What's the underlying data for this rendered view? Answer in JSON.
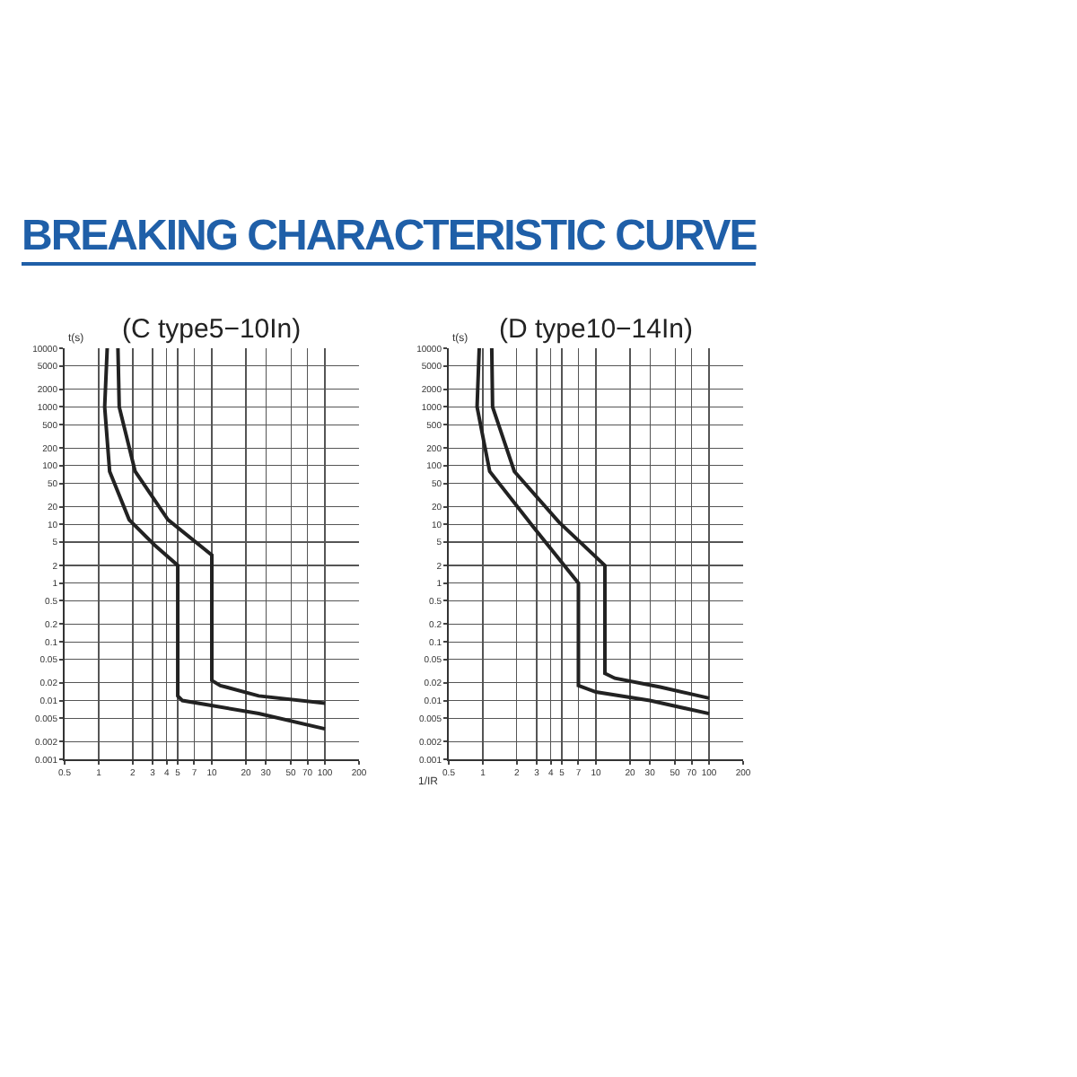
{
  "chart_data": [
    {
      "type": "line",
      "title": "BREAKING CHARACTERISTIC CURVE",
      "subtitle": "(C type5−10In)",
      "ylabel": "t(s)",
      "log": "xy",
      "grid": true,
      "marker": "none",
      "line_style": "solid",
      "xlim": [
        0.5,
        200
      ],
      "ylim": [
        0.001,
        10000
      ],
      "xticks": [
        0.5,
        1,
        2,
        3,
        4,
        5,
        7,
        10,
        20,
        30,
        50,
        70,
        100,
        200
      ],
      "yticks": [
        0.001,
        0.002,
        0.005,
        0.01,
        0.02,
        0.05,
        0.1,
        0.2,
        0.5,
        1,
        2,
        5,
        10,
        20,
        50,
        100,
        200,
        500,
        1000,
        2000,
        5000,
        10000
      ],
      "series": [
        {
          "color": "#222222",
          "x": [
            1.19,
            1.13,
            1.25,
            1.86,
            3.1,
            5,
            5,
            5.5,
            26,
            100
          ],
          "values": [
            10000,
            1000,
            80,
            12,
            4.5,
            2,
            0.012,
            0.01,
            0.006,
            0.0033
          ]
        },
        {
          "color": "#222222",
          "x": [
            1.48,
            1.52,
            2.1,
            4.1,
            10,
            10,
            11.9,
            26,
            100
          ],
          "values": [
            10000,
            1000,
            80,
            12,
            3,
            0.022,
            0.018,
            0.012,
            0.009
          ]
        }
      ]
    },
    {
      "type": "line",
      "subtitle": "(D type10−14In)",
      "ylabel": "t(s)",
      "xlabel": "1/IR",
      "log": "xy",
      "grid": true,
      "marker": "none",
      "line_style": "solid",
      "xlim": [
        0.5,
        200
      ],
      "ylim": [
        0.001,
        10000
      ],
      "xticks": [
        0.5,
        1,
        2,
        3,
        4,
        5,
        7,
        10,
        20,
        30,
        50,
        70,
        100,
        200
      ],
      "yticks": [
        0.001,
        0.002,
        0.005,
        0.01,
        0.02,
        0.05,
        0.1,
        0.2,
        0.5,
        1,
        2,
        5,
        10,
        20,
        50,
        100,
        200,
        500,
        1000,
        2000,
        5000,
        10000
      ],
      "series": [
        {
          "color": "#222222",
          "x": [
            0.93,
            0.89,
            1.15,
            2.8,
            7,
            7,
            10,
            30,
            100
          ],
          "values": [
            10000,
            1000,
            80,
            9,
            1,
            0.018,
            0.014,
            0.01,
            0.006
          ]
        },
        {
          "color": "#222222",
          "x": [
            1.2,
            1.22,
            1.9,
            4.7,
            12,
            12,
            14.7,
            37,
            100
          ],
          "values": [
            10000,
            1000,
            80,
            11,
            2,
            0.029,
            0.024,
            0.017,
            0.011
          ]
        }
      ]
    }
  ]
}
